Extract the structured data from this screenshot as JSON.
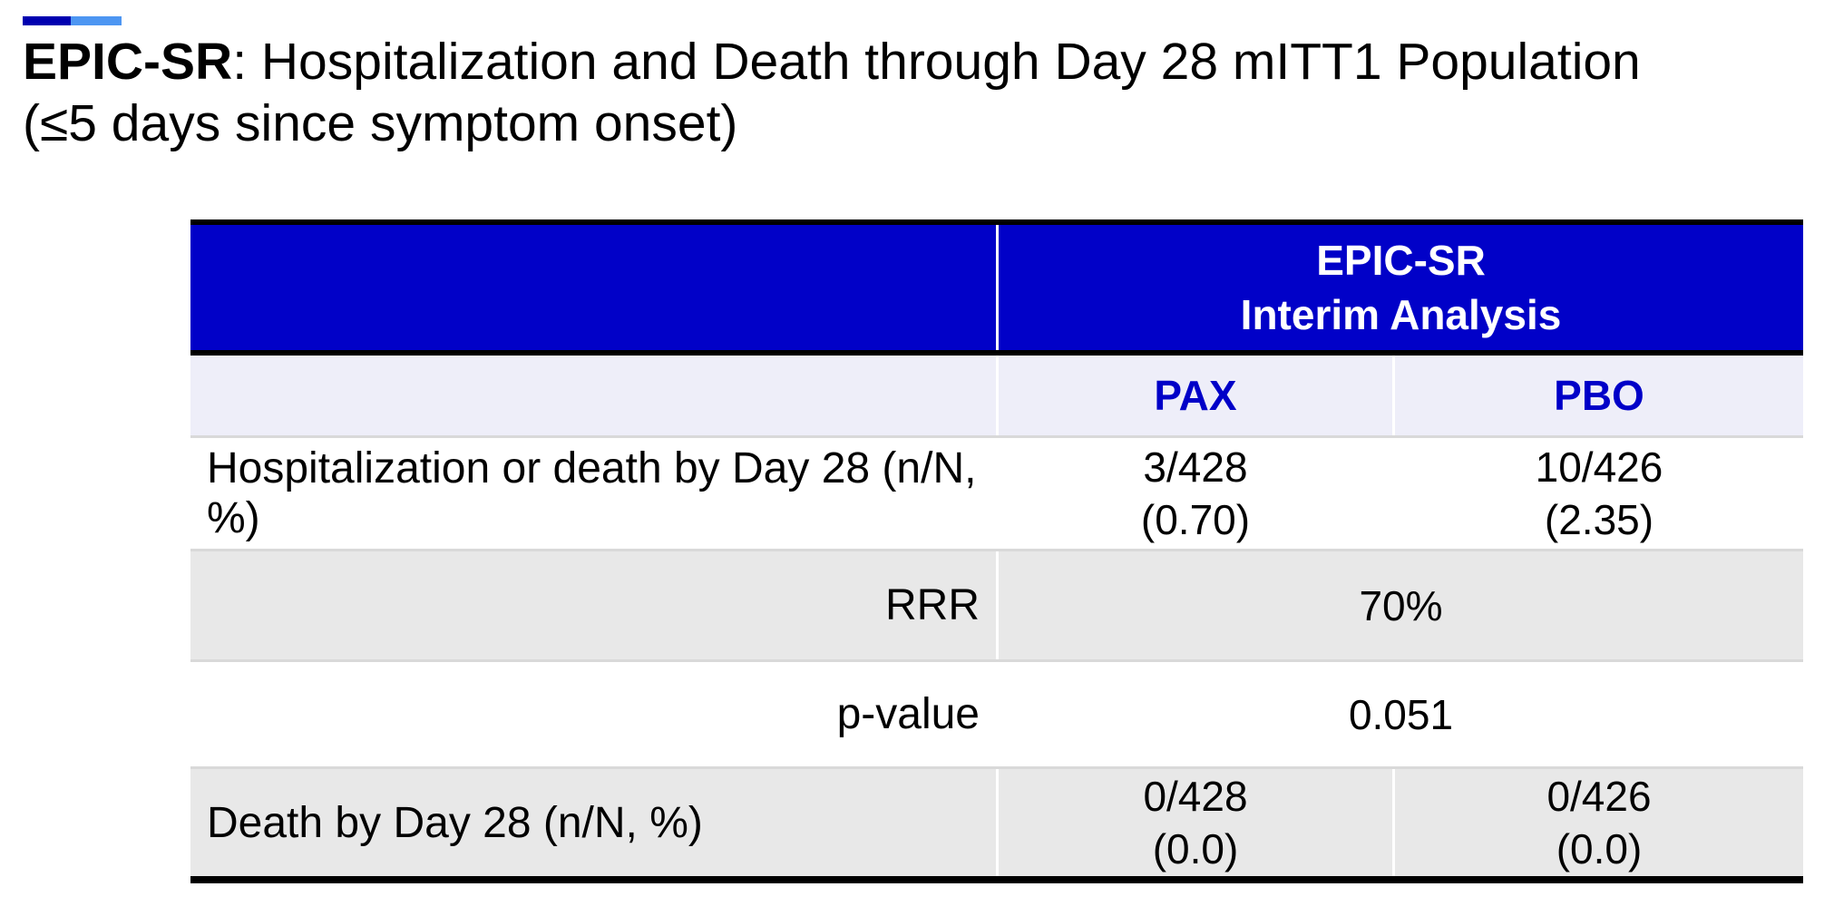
{
  "title": {
    "bold": "EPIC-SR",
    "line1_rest": ": Hospitalization and Death through Day 28 mITT1 Population",
    "line2": "(≤5 days since symptom onset)"
  },
  "table": {
    "header": {
      "group_line1": "EPIC-SR",
      "group_line2": "Interim Analysis"
    },
    "columns": {
      "pax": "PAX",
      "pbo": "PBO"
    },
    "rows": [
      {
        "label": "Hospitalization or death by Day 28 (n/N, %)",
        "pax": [
          "3/428",
          "(0.70)"
        ],
        "pbo": [
          "10/426",
          "(2.35)"
        ]
      },
      {
        "label": "RRR",
        "merged": "70%"
      },
      {
        "label": "p-value",
        "merged": "0.051"
      },
      {
        "label": "Death by Day 28 (n/N, %)",
        "pax": [
          "0/428",
          "(0.0)"
        ],
        "pbo": [
          "0/426",
          "(0.0)"
        ]
      }
    ]
  },
  "colors": {
    "header_blue": "#0101C8",
    "blue_text": "#0000C8",
    "accent_dark": "#0000B0",
    "accent_light": "#4D96F2",
    "lavender": "#EEEEF9",
    "row_gray": "#E8E8E8",
    "hairline": "#D9D9D9"
  }
}
